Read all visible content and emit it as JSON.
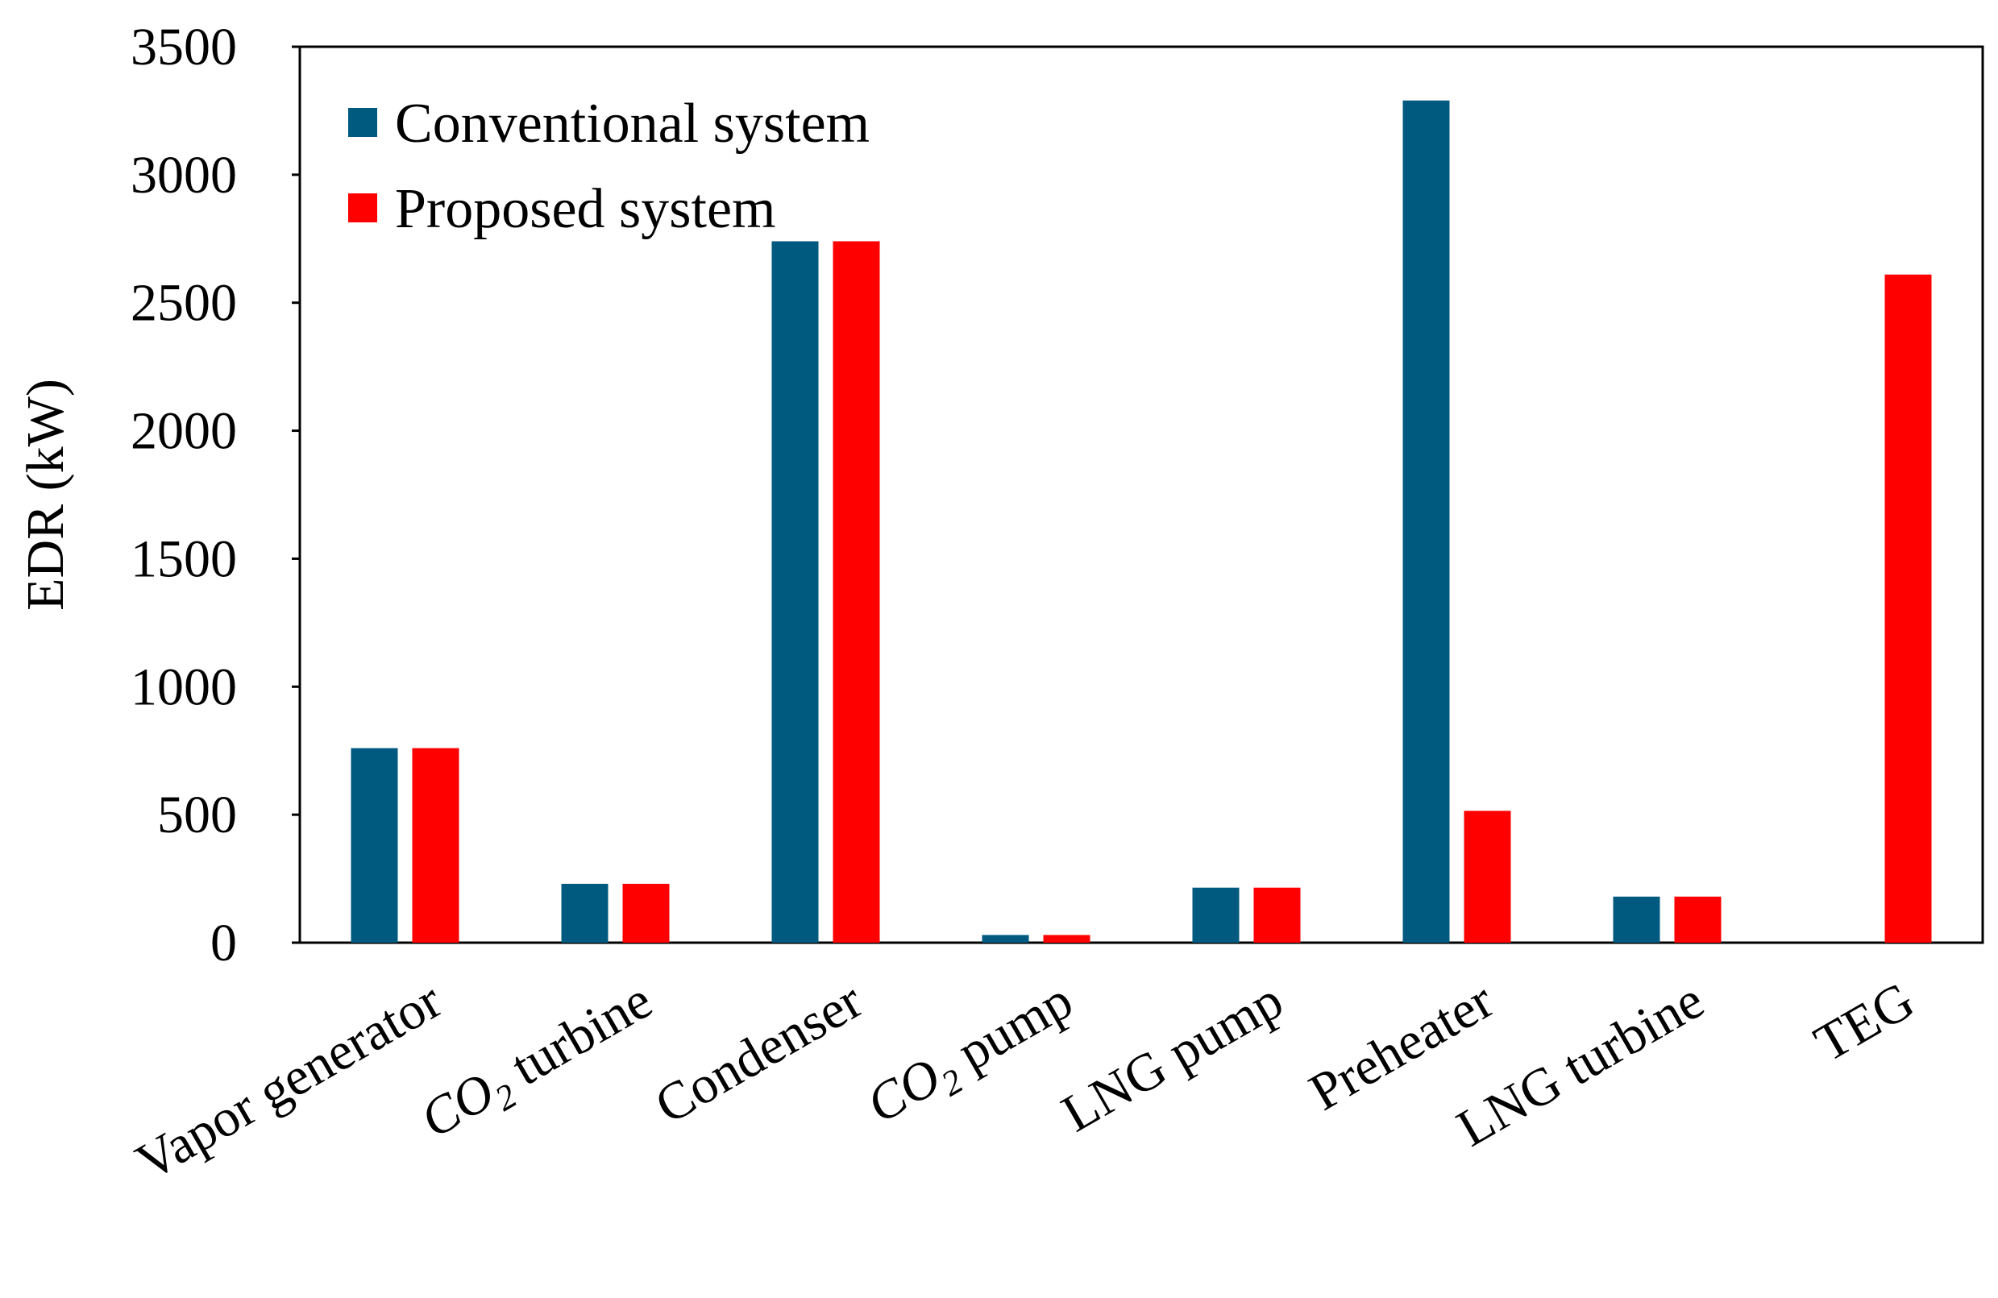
{
  "chart_data": {
    "type": "bar",
    "title": "",
    "xlabel": "",
    "ylabel": "EDR (kW)",
    "ylim": [
      0,
      3500
    ],
    "yticks": [
      0,
      500,
      1000,
      1500,
      2000,
      2500,
      3000,
      3500
    ],
    "grid": false,
    "legend_position": "top-left",
    "categories": [
      "Vapor generator",
      "CO2 turbine",
      "Condenser",
      "CO2 pump",
      "LNG pump",
      "Preheater",
      "LNG turbine",
      "TEG"
    ],
    "series": [
      {
        "name": "Conventional system",
        "color": "#005a7f",
        "values": [
          760,
          230,
          2740,
          30,
          215,
          3290,
          180,
          0
        ]
      },
      {
        "name": "Proposed system",
        "color": "#ff0000",
        "values": [
          760,
          230,
          2740,
          30,
          215,
          515,
          180,
          2610
        ]
      }
    ]
  }
}
